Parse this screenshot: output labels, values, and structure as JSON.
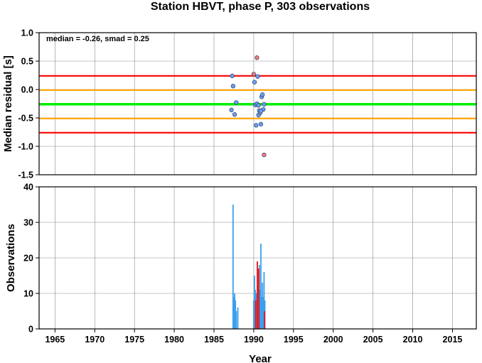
{
  "chart_data": [
    {
      "type": "scatter",
      "title": "Station HBVT, phase P, 303 observations",
      "ylabel": "Median residual [s]",
      "xlim": [
        1963,
        2018
      ],
      "ylim": [
        -1.5,
        1.0
      ],
      "yticks": [
        "1.0",
        "0.5",
        "0.0",
        "-0.5",
        "-1.0",
        "-1.5"
      ],
      "grid": true,
      "annotation": "median = -0.26, smad = 0.25",
      "reference_lines": [
        {
          "y": 0.24,
          "color": "#ff0000"
        },
        {
          "y": -0.01,
          "color": "#ffa500"
        },
        {
          "y": -0.26,
          "color": "#00ee00"
        },
        {
          "y": -0.51,
          "color": "#ffa500"
        },
        {
          "y": -0.76,
          "color": "#ff0000"
        }
      ],
      "series": [
        {
          "color": "#6e9ff0",
          "x": [
            1987.3,
            1987.4,
            1987.2,
            1987.6,
            1987.8,
            1990.1,
            1990.2,
            1990.3,
            1990.5,
            1990.6,
            1990.7,
            1990.8,
            1990.9,
            1991.0,
            1991.1,
            1991.2,
            1991.3,
            1990.4,
            1990.9,
            1990.6
          ],
          "y": [
            0.24,
            0.06,
            -0.36,
            -0.44,
            -0.23,
            0.13,
            -0.27,
            -0.63,
            0.23,
            -0.45,
            -0.37,
            -0.41,
            -0.61,
            -0.13,
            -0.09,
            -0.35,
            -0.26,
            -0.25,
            -0.38,
            -0.28
          ]
        },
        {
          "color": "#f47a7a",
          "x": [
            1990.0,
            1990.4,
            1991.3
          ],
          "y": [
            0.27,
            0.56,
            -1.15
          ]
        }
      ]
    },
    {
      "type": "bar",
      "xlabel": "Year",
      "ylabel": "Observations",
      "xlim": [
        1963,
        2018
      ],
      "ylim": [
        0,
        40
      ],
      "yticks": [
        "0",
        "10",
        "20",
        "30",
        "40"
      ],
      "xticks": [
        "1965",
        "1970",
        "1975",
        "1980",
        "1985",
        "1990",
        "1995",
        "2000",
        "2005",
        "2010",
        "2015"
      ],
      "grid": true,
      "series": [
        {
          "color": "#3aa0ee",
          "x": [
            1987.4,
            1987.5,
            1987.6,
            1987.7,
            1987.8,
            1988.0,
            1990.0,
            1990.1,
            1990.2,
            1990.3,
            1990.5,
            1990.6,
            1990.7,
            1990.8,
            1990.9,
            1991.0,
            1991.1,
            1991.2,
            1991.3,
            1991.4
          ],
          "values": [
            35,
            9,
            10,
            8,
            5,
            6,
            8,
            15,
            11,
            10,
            12,
            17,
            18,
            11,
            24,
            9,
            13,
            9,
            16,
            8
          ]
        },
        {
          "color": "#ee1111",
          "x": [
            1990.25,
            1990.45,
            1990.65,
            1991.35
          ],
          "values": [
            8,
            19,
            17,
            5
          ]
        }
      ]
    }
  ]
}
